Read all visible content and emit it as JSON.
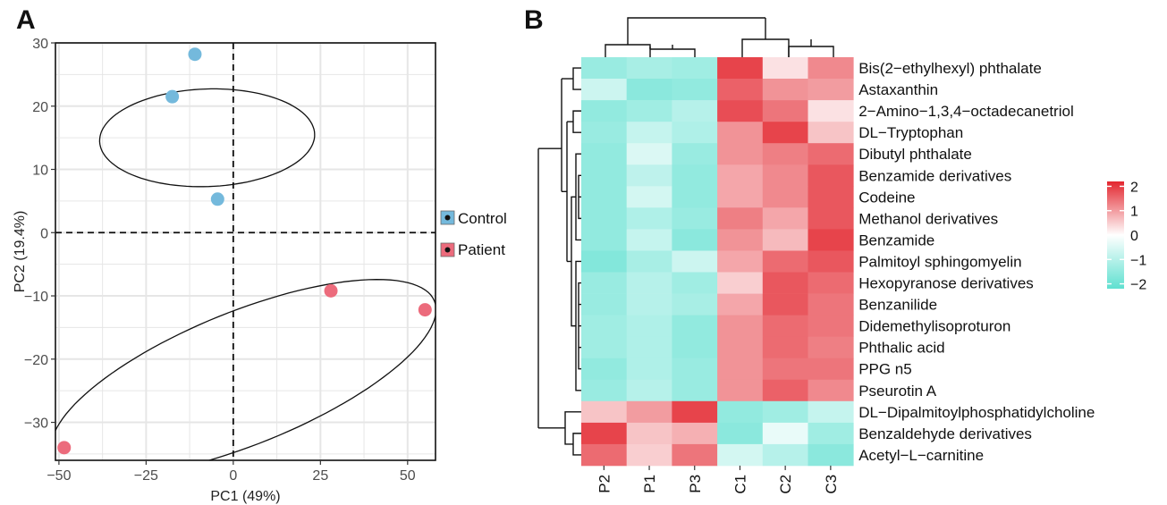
{
  "chart_data": [
    {
      "panel": "A",
      "type": "scatter",
      "xlabel": "PC1 (49%)",
      "ylabel": "PC2 (19.4%)",
      "xlim": [
        -51,
        58
      ],
      "ylim": [
        -36,
        30
      ],
      "xticks": [
        -50,
        -25,
        0,
        25,
        50
      ],
      "yticks": [
        -30,
        -20,
        -10,
        0,
        10,
        20,
        30
      ],
      "grid": true,
      "legend_position": "right",
      "series": [
        {
          "name": "Control",
          "color": "#74b9dc",
          "points": [
            {
              "x": -11,
              "y": 28.2
            },
            {
              "x": -17.5,
              "y": 21.5
            },
            {
              "x": -4.5,
              "y": 5.3
            }
          ],
          "ellipse": {
            "cx": -7.5,
            "cy": 15,
            "rx": 14,
            "ry": 17,
            "angle_deg": -88
          }
        },
        {
          "name": "Patient",
          "color": "#ec6b7c",
          "points": [
            {
              "x": 28,
              "y": -9.2
            },
            {
              "x": 55,
              "y": -12.2
            },
            {
              "x": -48.5,
              "y": -34
            }
          ],
          "ellipse": {
            "cx": 3,
            "cy": -23,
            "rx": 59,
            "ry": 10.5,
            "angle_deg": 22
          }
        }
      ]
    },
    {
      "panel": "B",
      "type": "heatmap",
      "columns": [
        "P2",
        "P1",
        "P3",
        "C1",
        "C2",
        "C3"
      ],
      "rows": [
        "Bis(2−ethylhexyl) phthalate",
        "Astaxanthin",
        "2−Amino−1,3,4−octadecanetriol",
        "DL−Tryptophan",
        "Dibutyl phthalate",
        "Benzamide derivatives",
        "Codeine",
        "Methanol derivatives",
        "Benzamide",
        "Palmitoyl sphingomyelin",
        "Hexopyranose derivatives",
        "Benzanilide",
        "Didemethylisoproturon",
        "Phthalic acid",
        "PPG n5",
        "Pseurotin A",
        "DL−Dipalmitoylphosphatidylcholine",
        "Benzaldehyde derivatives",
        "Acetyl−L−carnitine"
      ],
      "values": [
        [
          -1.4,
          -1.2,
          -1.3,
          1.9,
          0.3,
          1.2
        ],
        [
          -0.7,
          -1.6,
          -1.5,
          1.6,
          1.1,
          1.0
        ],
        [
          -1.5,
          -1.3,
          -1.0,
          1.8,
          1.4,
          0.3
        ],
        [
          -1.4,
          -0.8,
          -1.1,
          1.1,
          1.9,
          0.6
        ],
        [
          -1.5,
          -0.5,
          -1.4,
          1.1,
          1.3,
          1.5
        ],
        [
          -1.5,
          -0.9,
          -1.5,
          0.9,
          1.2,
          1.7
        ],
        [
          -1.5,
          -0.6,
          -1.5,
          0.9,
          1.2,
          1.7
        ],
        [
          -1.5,
          -1.1,
          -1.4,
          1.3,
          0.9,
          1.7
        ],
        [
          -1.5,
          -0.8,
          -1.6,
          1.1,
          0.7,
          1.9
        ],
        [
          -1.7,
          -1.2,
          -0.7,
          0.9,
          1.5,
          1.7
        ],
        [
          -1.4,
          -1.0,
          -1.3,
          0.5,
          1.7,
          1.5
        ],
        [
          -1.4,
          -1.0,
          -1.2,
          0.9,
          1.7,
          1.4
        ],
        [
          -1.3,
          -1.1,
          -1.5,
          1.1,
          1.5,
          1.4
        ],
        [
          -1.3,
          -1.1,
          -1.5,
          1.1,
          1.5,
          1.3
        ],
        [
          -1.5,
          -1.1,
          -1.4,
          1.1,
          1.4,
          1.4
        ],
        [
          -1.4,
          -1.0,
          -1.4,
          1.1,
          1.6,
          1.2
        ],
        [
          0.6,
          1.0,
          1.9,
          -1.5,
          -1.3,
          -0.8
        ],
        [
          1.9,
          0.6,
          0.8,
          -1.6,
          -0.3,
          -1.3
        ],
        [
          1.5,
          0.5,
          1.4,
          -0.6,
          -1.0,
          -1.6
        ]
      ],
      "color_range": [
        -2.2,
        2.2
      ],
      "colorbar_ticks": [
        2,
        1,
        0,
        -1,
        -2
      ],
      "colors": {
        "low": "#5fe0d0",
        "mid": "#ffffff",
        "high": "#e3262f"
      }
    }
  ],
  "figure": {
    "panel_a_label": "A",
    "panel_b_label": "B",
    "legend_items": [
      "Control",
      "Patient"
    ]
  }
}
